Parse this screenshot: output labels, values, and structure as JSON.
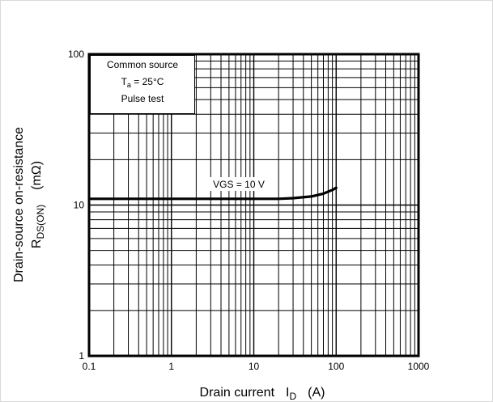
{
  "chart_data": {
    "type": "line",
    "xscale": "log",
    "yscale": "log",
    "xlim": [
      0.1,
      1000
    ],
    "ylim": [
      1,
      100
    ],
    "grid": true,
    "x_ticks": [
      "0.1",
      "1",
      "10",
      "100",
      "1000"
    ],
    "y_ticks": [
      "1",
      "10",
      "100"
    ],
    "xlabel": {
      "main": "Drain current",
      "symbol": "I",
      "sub": "D",
      "unit": "(A)"
    },
    "ylabel": {
      "line1": "Drain-source on-resistance",
      "symbol": "R",
      "sub": "DS(ON)",
      "unit": "(mΩ)"
    },
    "annotation": {
      "line1": "Common source",
      "line2_symbol": "T",
      "line2_sub": "a",
      "line2_rest": " = 25°C",
      "line3": "Pulse test"
    },
    "series": [
      {
        "name": "VGS = 10 V",
        "x": [
          0.1,
          1,
          10,
          20,
          30,
          50,
          70,
          90,
          100
        ],
        "y": [
          11.0,
          11.0,
          11.0,
          11.0,
          11.1,
          11.4,
          11.9,
          12.6,
          13.0
        ]
      }
    ]
  }
}
